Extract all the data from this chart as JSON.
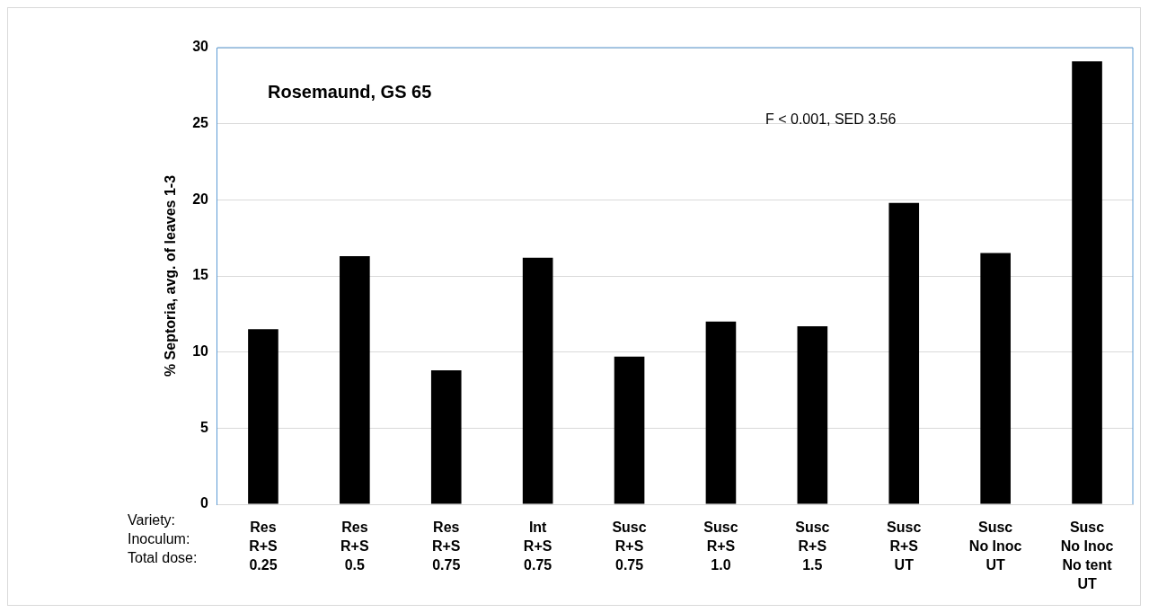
{
  "chart_data": {
    "type": "bar",
    "title": "Rosemaund, GS 65",
    "ylabel": "% Septoria, avg. of leaves 1-3",
    "xlabel": "Variety:\nInoculum:\nTotal dose:",
    "categories": [
      "Res\nR+S\n0.25",
      "Res\nR+S\n0.5",
      "Res\nR+S\n0.75",
      "Int\nR+S\n0.75",
      "Susc\nR+S\n0.75",
      "Susc\nR+S\n1.0",
      "Susc\nR+S\n1.5",
      "Susc\nR+S\nUT",
      "Susc\nNo Inoc\nUT",
      "Susc\nNo Inoc\nNo tent\nUT"
    ],
    "values": [
      11.5,
      16.3,
      8.8,
      16.2,
      9.7,
      12.0,
      11.7,
      19.8,
      16.5,
      29.1
    ],
    "color": "#000000",
    "ylim": [
      0,
      30
    ],
    "yticks": [
      0,
      5,
      10,
      15,
      20,
      25,
      30
    ],
    "grid": "y",
    "legend": false,
    "annotations": [
      "F < 0.001, SED 3.56"
    ]
  }
}
